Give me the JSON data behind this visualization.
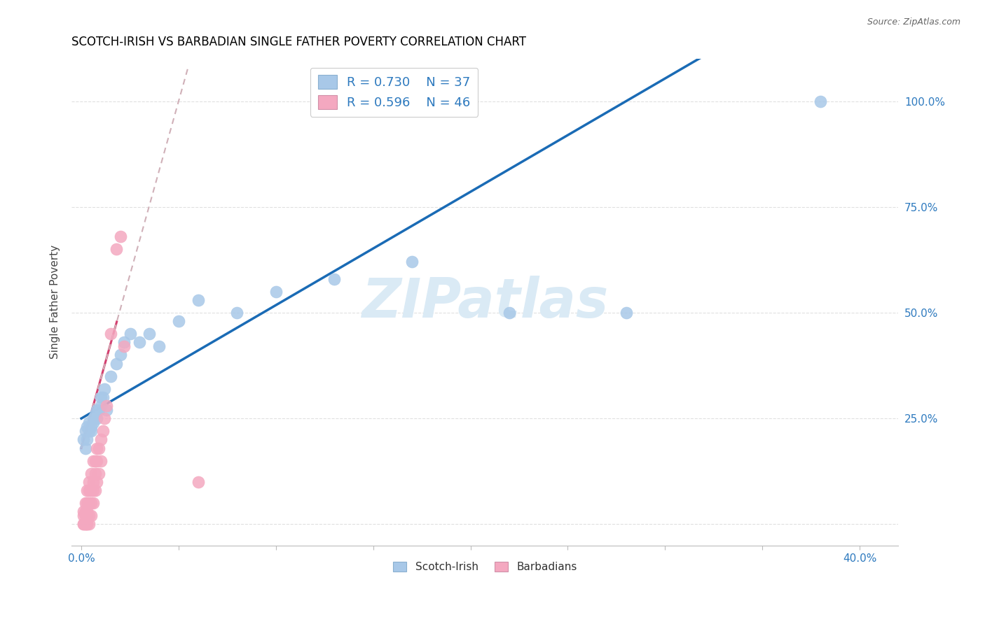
{
  "title": "SCOTCH-IRISH VS BARBADIAN SINGLE FATHER POVERTY CORRELATION CHART",
  "source": "Source: ZipAtlas.com",
  "ylabel": "Single Father Poverty",
  "legend_blue_r": "R = 0.730",
  "legend_blue_n": "N = 37",
  "legend_pink_r": "R = 0.596",
  "legend_pink_n": "N = 46",
  "blue_dot_color": "#a8c8e8",
  "pink_dot_color": "#f4a8c0",
  "blue_line_color": "#1a6bb5",
  "pink_line_color": "#d44070",
  "gray_dash_color": "#d0b0b8",
  "label_color": "#2e7abf",
  "watermark_color": "#daeaf5",
  "scotch_irish_x": [
    0.001,
    0.002,
    0.002,
    0.003,
    0.003,
    0.004,
    0.004,
    0.005,
    0.005,
    0.006,
    0.006,
    0.007,
    0.008,
    0.008,
    0.009,
    0.01,
    0.01,
    0.011,
    0.012,
    0.013,
    0.015,
    0.018,
    0.02,
    0.022,
    0.025,
    0.03,
    0.035,
    0.04,
    0.05,
    0.06,
    0.08,
    0.1,
    0.13,
    0.17,
    0.22,
    0.28,
    0.38
  ],
  "scotch_irish_y": [
    0.2,
    0.18,
    0.22,
    0.2,
    0.23,
    0.22,
    0.24,
    0.23,
    0.22,
    0.25,
    0.24,
    0.26,
    0.27,
    0.25,
    0.27,
    0.28,
    0.3,
    0.3,
    0.32,
    0.27,
    0.35,
    0.38,
    0.4,
    0.43,
    0.45,
    0.43,
    0.45,
    0.42,
    0.48,
    0.53,
    0.5,
    0.55,
    0.58,
    0.62,
    0.5,
    0.5,
    1.0
  ],
  "barbadian_x": [
    0.001,
    0.001,
    0.001,
    0.001,
    0.002,
    0.002,
    0.002,
    0.002,
    0.002,
    0.003,
    0.003,
    0.003,
    0.003,
    0.003,
    0.003,
    0.004,
    0.004,
    0.004,
    0.004,
    0.004,
    0.005,
    0.005,
    0.005,
    0.005,
    0.006,
    0.006,
    0.006,
    0.006,
    0.007,
    0.007,
    0.007,
    0.008,
    0.008,
    0.008,
    0.009,
    0.009,
    0.01,
    0.01,
    0.011,
    0.012,
    0.013,
    0.015,
    0.018,
    0.02,
    0.022,
    0.06
  ],
  "barbadian_y": [
    0.0,
    0.0,
    0.02,
    0.03,
    0.0,
    0.0,
    0.02,
    0.03,
    0.05,
    0.0,
    0.0,
    0.02,
    0.03,
    0.05,
    0.08,
    0.0,
    0.02,
    0.05,
    0.08,
    0.1,
    0.02,
    0.05,
    0.08,
    0.12,
    0.05,
    0.08,
    0.1,
    0.15,
    0.08,
    0.12,
    0.15,
    0.1,
    0.15,
    0.18,
    0.12,
    0.18,
    0.15,
    0.2,
    0.22,
    0.25,
    0.28,
    0.45,
    0.65,
    0.68,
    0.42,
    0.1
  ],
  "xlim": [
    -0.005,
    0.42
  ],
  "ylim": [
    -0.05,
    1.1
  ],
  "xtick_positions": [
    0.0,
    0.05,
    0.1,
    0.15,
    0.2,
    0.25,
    0.3,
    0.35,
    0.4
  ],
  "ytick_positions": [
    0.0,
    0.25,
    0.5,
    0.75,
    1.0
  ],
  "ytick_labels_right": [
    "",
    "25.0%",
    "50.0%",
    "75.0%",
    "100.0%"
  ]
}
